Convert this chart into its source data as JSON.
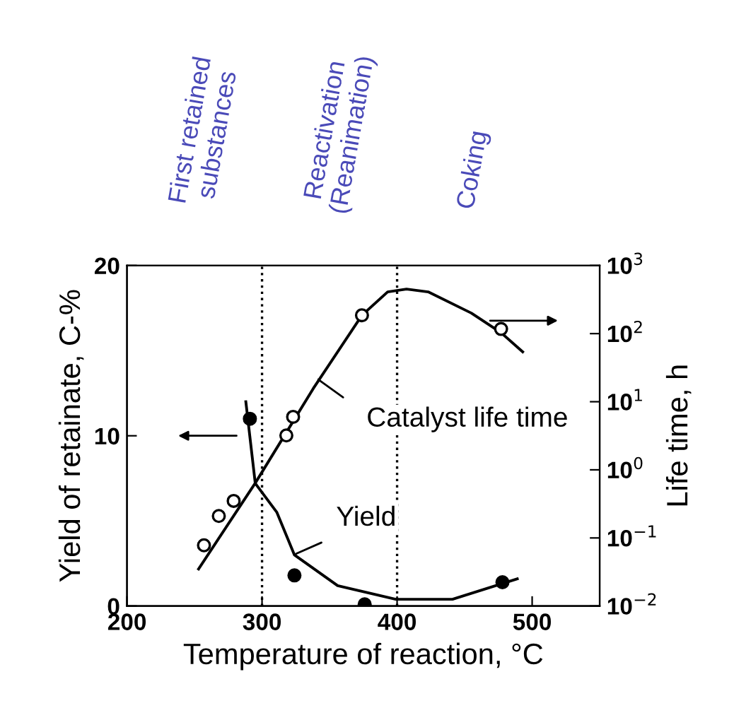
{
  "chart_data": {
    "type": "line",
    "xlabel": "Temperature of reaction, °C",
    "ylabel": "Yield of retainate, C-%",
    "y2label": "Life time, h",
    "xlim": [
      200,
      550
    ],
    "xticks": [
      200,
      300,
      400,
      500
    ],
    "ylim": [
      0,
      20
    ],
    "yticks": [
      0,
      10,
      20
    ],
    "y2lim": [
      0.01,
      1000
    ],
    "y2ticks": [
      {
        "value": 0.01,
        "label": "10$^{−2}$"
      },
      {
        "value": 0.1,
        "label": "10$^{−1}$"
      },
      {
        "value": 1,
        "label": "10$^{0}$"
      },
      {
        "value": 10,
        "label": "10$^{1}$"
      },
      {
        "value": 100,
        "label": "10$^{2}$"
      },
      {
        "value": 1000,
        "label": "10$^{3}$"
      }
    ],
    "log": "y2",
    "grid": false,
    "series": [
      {
        "color": "#000000",
        "marker": "none",
        "line_style": "solid",
        "x": [
          288,
          295,
          311,
          324,
          356,
          399,
          441,
          489
        ],
        "values": [
          12.0,
          7.2,
          5.5,
          3.0,
          1.2,
          0.4,
          0.4,
          1.6
        ]
      },
      {
        "type": "scatter",
        "color": "#000000",
        "marker": "circle",
        "x": [
          291,
          324,
          376,
          478
        ],
        "values": [
          11.0,
          1.8,
          0.1,
          1.4
        ]
      },
      {
        "type": "line",
        "axis": "y2",
        "color": "#000000",
        "marker": "none",
        "line_style": "solid",
        "x": [
          253,
          295,
          338,
          374,
          393,
          407,
          423,
          455,
          477,
          493
        ],
        "values": [
          0.035,
          0.64,
          15.7,
          186,
          410,
          450,
          410,
          200,
          103,
          54
        ]
      },
      {
        "type": "scatter",
        "axis": "y2",
        "color": "#000000",
        "marker": "circle",
        "x": [
          257,
          268,
          279,
          318,
          323,
          374,
          477
        ],
        "values": [
          0.078,
          0.21,
          0.35,
          3.2,
          6.0,
          186,
          117
        ]
      }
    ],
    "ref_lines": [
      {
        "axis": "x",
        "value": 300,
        "color": "#000000",
        "line_style": "dotted"
      },
      {
        "axis": "x",
        "value": 400,
        "color": "#000000",
        "line_style": "dotted"
      }
    ],
    "annotations": [
      "First retained\nsubstances",
      "Reactivation\n(Reanimation)",
      "Coking",
      "Catalyst life time",
      "Yield"
    ]
  }
}
